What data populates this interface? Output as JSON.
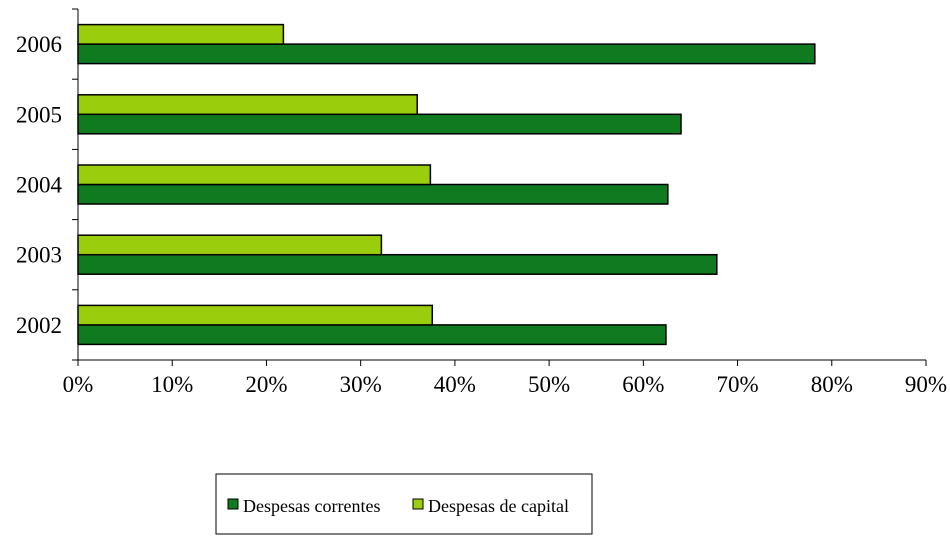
{
  "chart_data": {
    "type": "bar",
    "orientation": "horizontal",
    "title": "",
    "xlabel": "",
    "ylabel": "",
    "categories": [
      "2002",
      "2003",
      "2004",
      "2005",
      "2006"
    ],
    "series": [
      {
        "name": "Despesas correntes",
        "values": [
          62.4,
          67.8,
          62.6,
          64.0,
          78.2
        ],
        "color": "#0f7a1f"
      },
      {
        "name": "Despesas de capital",
        "values": [
          37.6,
          32.2,
          37.4,
          36.0,
          21.8
        ],
        "color": "#9acd0b"
      }
    ],
    "xlim": [
      0,
      90
    ],
    "xticks": [
      0,
      10,
      20,
      30,
      40,
      50,
      60,
      70,
      80,
      90
    ],
    "xtick_labels": [
      "0%",
      "10%",
      "20%",
      "30%",
      "40%",
      "50%",
      "60%",
      "70%",
      "80%",
      "90%"
    ],
    "grid": false,
    "legend_position": "bottom"
  }
}
